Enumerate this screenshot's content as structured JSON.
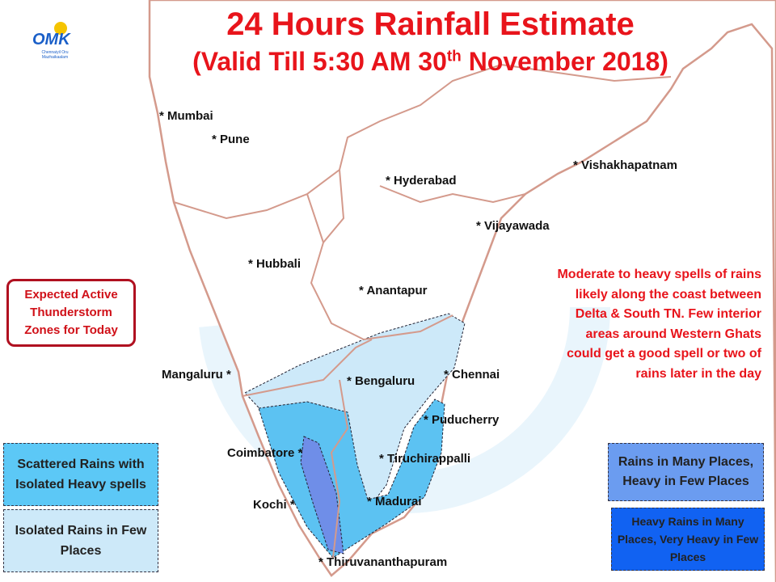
{
  "title": "24 Hours Rainfall Estimate",
  "subtitle": {
    "before": "(Valid Till 5:30 AM 30",
    "sup": "th",
    "after": " November 2018)"
  },
  "logo": {
    "text": "OMK",
    "tagline": "Chennaiyil Oru Mazhaikaalam"
  },
  "marker": "*",
  "cities": [
    "Mumbai",
    "Pune",
    "Hyderabad",
    "Vishakhapatnam",
    "Vijayawada",
    "Hubbali",
    "Anantapur",
    "Mangaluru",
    "Bengaluru",
    "Chennai",
    "Puducherry",
    "Coimbatore",
    "Tiruchirappalli",
    "Kochi",
    "Madurai",
    "Thiruvananthapuram"
  ],
  "callout": "Expected Active Thunderstorm Zones for Today",
  "note": "Moderate to heavy spells of rains likely along the coast between Delta & South TN. Few interior areas around Western Ghats could get a good spell or two of rains later in the day",
  "legend": [
    "Scattered Rains with Isolated Heavy spells",
    "Isolated Rains in Few  Places",
    "Rains in Many Places, Heavy in Few Places",
    "Heavy Rains in Many Places, Very Heavy in Few Places"
  ]
}
